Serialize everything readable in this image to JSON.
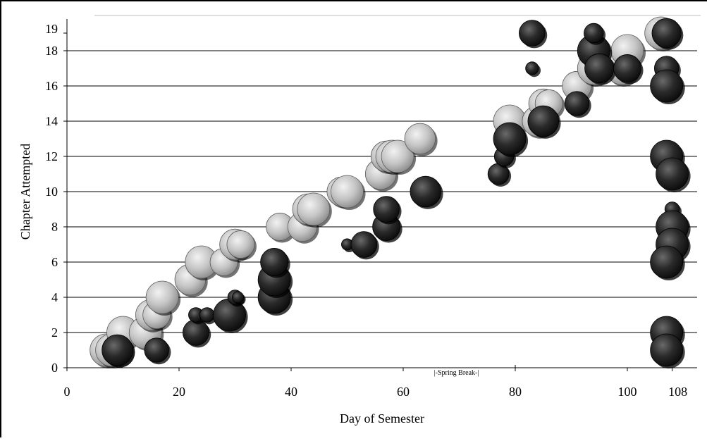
{
  "chart_data": {
    "type": "scatter",
    "title": "",
    "xlabel": "Day of Semester",
    "ylabel": "Chapter Attempted",
    "xlim": [
      0,
      108
    ],
    "ylim": [
      0,
      19
    ],
    "x_ticks": [
      0,
      20,
      40,
      60,
      80,
      100,
      108
    ],
    "y_ticks": [
      0,
      2,
      4,
      6,
      8,
      10,
      12,
      14,
      16,
      18,
      19
    ],
    "grid": "horizontal",
    "legend": "none",
    "annotations": [
      {
        "text": "|-Spring Break-|",
        "x": 69.5,
        "y": 0
      }
    ],
    "colors": {
      "light": "#c2c2c2",
      "dark": "#262626"
    },
    "series": [
      {
        "style": "light",
        "points": [
          [
            7,
            1,
            1.0
          ],
          [
            8,
            1,
            1.0
          ],
          [
            9,
            1,
            0.95
          ],
          [
            10,
            2,
            1.0
          ],
          [
            14,
            2,
            1.0
          ],
          [
            15,
            3,
            0.95
          ],
          [
            16,
            3,
            0.85
          ],
          [
            17,
            4,
            1.0
          ],
          [
            22,
            5,
            0.95
          ],
          [
            24,
            6,
            1.0
          ],
          [
            28,
            6,
            0.85
          ],
          [
            30,
            7,
            0.95
          ],
          [
            31,
            7,
            0.85
          ],
          [
            38,
            8,
            0.85
          ],
          [
            42,
            8,
            0.9
          ],
          [
            43,
            9,
            0.95
          ],
          [
            44,
            9,
            1.0
          ],
          [
            49,
            10,
            0.9
          ],
          [
            50,
            10,
            1.0
          ],
          [
            56,
            11,
            0.95
          ],
          [
            57,
            12,
            0.95
          ],
          [
            58,
            12,
            1.0
          ],
          [
            59,
            12,
            1.0
          ],
          [
            63,
            13,
            0.95
          ],
          [
            79,
            14,
            1.0
          ],
          [
            84,
            14,
            0.95
          ],
          [
            85,
            15,
            0.9
          ],
          [
            86,
            15,
            0.85
          ],
          [
            91,
            16,
            0.9
          ],
          [
            94,
            17,
            1.0
          ],
          [
            99,
            17,
            1.0
          ],
          [
            100,
            18,
            1.0
          ],
          [
            106,
            19,
            1.0
          ]
        ]
      },
      {
        "style": "dark",
        "points": [
          [
            9,
            1,
            0.95
          ],
          [
            16,
            1,
            0.75
          ],
          [
            23,
            2,
            0.8
          ],
          [
            23,
            3,
            0.45
          ],
          [
            25,
            3,
            0.45
          ],
          [
            29,
            3,
            1.0
          ],
          [
            30,
            4,
            0.45
          ],
          [
            30.5,
            4,
            0.35
          ],
          [
            37,
            4,
            1.0
          ],
          [
            37,
            5,
            1.0
          ],
          [
            37,
            6,
            0.85
          ],
          [
            50,
            7,
            0.35
          ],
          [
            53,
            7,
            0.8
          ],
          [
            57,
            8,
            0.85
          ],
          [
            57,
            9,
            0.8
          ],
          [
            64,
            10,
            0.95
          ],
          [
            77,
            11,
            0.65
          ],
          [
            78,
            12,
            0.6
          ],
          [
            79,
            13,
            1.0
          ],
          [
            83,
            17,
            0.4
          ],
          [
            83,
            19,
            0.8
          ],
          [
            85,
            14,
            0.95
          ],
          [
            91,
            15,
            0.75
          ],
          [
            94,
            18,
            1.0
          ],
          [
            94,
            19,
            0.6
          ],
          [
            95,
            17,
            0.9
          ],
          [
            100,
            17,
            0.85
          ],
          [
            107,
            19,
            0.9
          ],
          [
            107,
            17,
            0.75
          ],
          [
            107,
            16,
            1.0
          ],
          [
            107,
            12,
            1.0
          ],
          [
            108,
            11,
            1.0
          ],
          [
            108,
            9,
            0.45
          ],
          [
            108,
            8,
            1.0
          ],
          [
            108,
            7,
            1.0
          ],
          [
            107,
            6,
            1.0
          ],
          [
            107,
            2,
            1.0
          ],
          [
            107,
            1,
            1.0
          ]
        ]
      }
    ]
  }
}
